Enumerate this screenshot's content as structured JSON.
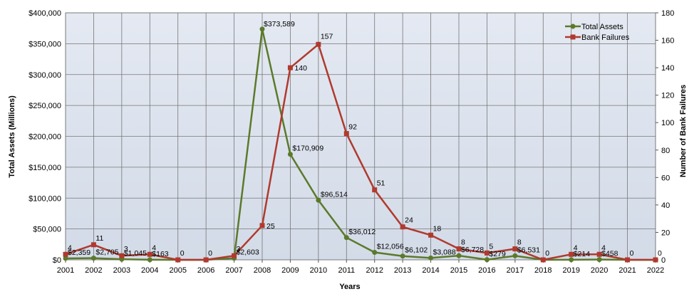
{
  "chart_data": {
    "type": "line",
    "xlabel": "Years",
    "ylabel_left": "Total Assets (Millions)",
    "ylabel_right": "Number of Bank Failures",
    "ylim_left": [
      0,
      400000
    ],
    "ylim_right": [
      0,
      180
    ],
    "yticks_left": [
      "$0",
      "$50,000",
      "$100,000",
      "$150,000",
      "$200,000",
      "$250,000",
      "$300,000",
      "$350,000",
      "$400,000"
    ],
    "yticks_right": [
      "0",
      "20",
      "40",
      "60",
      "80",
      "100",
      "120",
      "140",
      "160",
      "180"
    ],
    "grid": true,
    "legend_position": "top-right",
    "categories": [
      "2001",
      "2002",
      "2003",
      "2004",
      "2005",
      "2006",
      "2007",
      "2008",
      "2009",
      "2010",
      "2011",
      "2012",
      "2013",
      "2014",
      "2015",
      "2016",
      "2017",
      "2018",
      "2019",
      "2020",
      "2021",
      "2022"
    ],
    "series": [
      {
        "name": "Total Assets",
        "axis": "left",
        "color": "#5b7a2a",
        "values": [
          2359,
          2705,
          1045,
          163,
          0,
          0,
          2603,
          373589,
          170909,
          96514,
          36012,
          12056,
          6102,
          3088,
          6728,
          279,
          6531,
          0,
          214,
          458,
          0,
          0
        ],
        "labels": [
          "$2,359",
          "$2,705",
          "$1,045",
          "$163",
          "",
          "",
          "$2,603",
          "$373,589",
          "$170,909",
          "$96,514",
          "$36,012",
          "$12,056",
          "$6,102",
          "$3,088",
          "$6,728",
          "$279",
          "$6,531",
          "",
          "$214",
          "$458",
          "",
          ""
        ]
      },
      {
        "name": "Bank Failures",
        "axis": "right",
        "color": "#b03a2e",
        "values": [
          4,
          11,
          3,
          4,
          0,
          0,
          3,
          25,
          140,
          157,
          92,
          51,
          24,
          18,
          8,
          5,
          8,
          0,
          4,
          4,
          0,
          0
        ],
        "labels": [
          "4",
          "11",
          "3",
          "4",
          "0",
          "0",
          "3",
          "25",
          "140",
          "157",
          "92",
          "51",
          "24",
          "18",
          "8",
          "5",
          "8",
          "0",
          "4",
          "4",
          "0",
          "0"
        ]
      }
    ]
  }
}
